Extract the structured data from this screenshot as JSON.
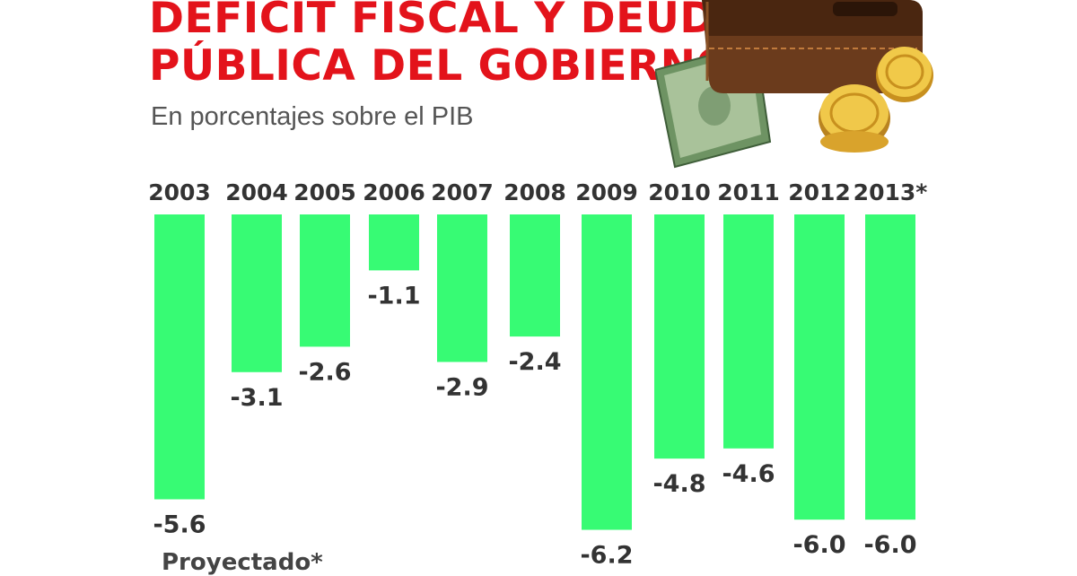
{
  "header": {
    "title_line1": "DEFICIT FISCAL Y DEUDA",
    "title_line2": "PÚBLICA DEL GOBIERNO",
    "subtitle": "En porcentajes sobre el PIB"
  },
  "footnote": "Proyectado*",
  "colors": {
    "bar": "#37fb74",
    "title": "#e3131b",
    "text": "#333333"
  },
  "illustration": {
    "icon": "wallet-with-cash-and-coins-icon"
  },
  "chart_data": {
    "type": "bar",
    "title": "DEFICIT FISCAL Y DEUDA PÚBLICA DEL GOBIERNO",
    "subtitle": "En porcentajes sobre el PIB",
    "categories": [
      "2003",
      "2004",
      "2005",
      "2006",
      "2007",
      "2008",
      "2009",
      "2010",
      "2011",
      "2012",
      "2013*"
    ],
    "values": [
      null,
      -3.1,
      -2.6,
      -1.1,
      -2.9,
      -2.4,
      -6.2,
      -4.8,
      -4.6,
      -6.0,
      -6.0
    ],
    "value_labels": [
      "-5.6",
      "-3.1",
      "-2.6",
      "-1.1",
      "-2.9",
      "-2.4",
      "-6.2",
      "-4.8",
      "-4.6",
      "-6.0",
      "-6.0"
    ],
    "bar_extents": [
      -5.6,
      -3.1,
      -2.6,
      -1.1,
      -2.9,
      -2.4,
      -6.2,
      -4.8,
      -4.6,
      -6.0,
      -6.0
    ],
    "xlabel": "",
    "ylabel": "",
    "ylim": [
      -6.5,
      0
    ],
    "grid": false,
    "legend": "none",
    "category_position": "top"
  }
}
